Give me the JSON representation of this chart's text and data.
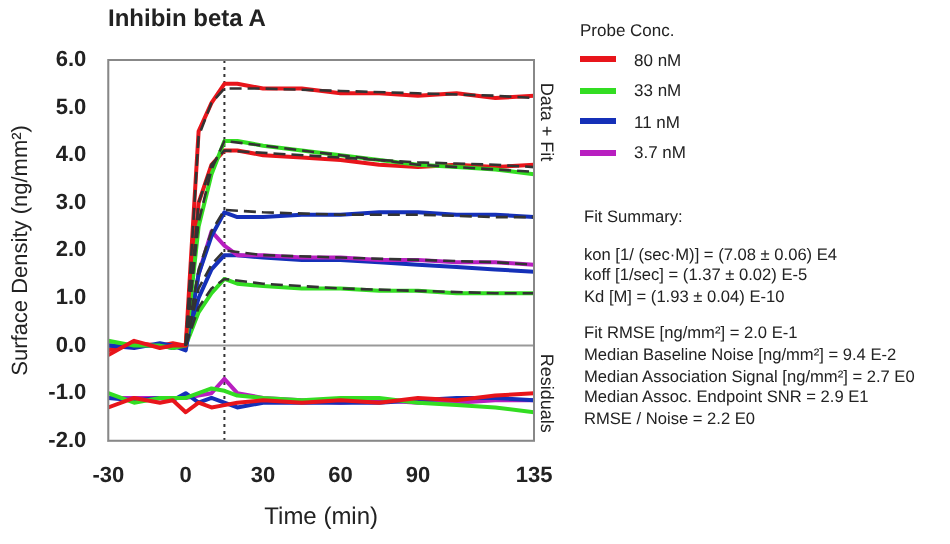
{
  "chart_data": {
    "type": "line",
    "title": "Inhibin beta A",
    "xlabel": "Time (min)",
    "ylabel": "Surface Density (ng/mm²)",
    "legend_title": "Probe Conc.",
    "legend": "right",
    "grid": false,
    "xlim": [
      -30,
      135
    ],
    "xticks": [
      -30,
      0,
      30,
      60,
      90,
      135
    ],
    "ylim": [
      -2,
      6
    ],
    "yticks": [
      {
        "value": -2,
        "label": "-2.0"
      },
      {
        "value": -1,
        "label": "-1.0"
      },
      {
        "value": 0,
        "label": "0.0"
      },
      {
        "value": 1,
        "label": "1.0"
      },
      {
        "value": 2,
        "label": "2.0"
      },
      {
        "value": 3,
        "label": "3.0"
      },
      {
        "value": 4,
        "label": "4.0"
      },
      {
        "value": 5,
        "label": "5.0"
      },
      {
        "value": 6,
        "label": "6.0"
      }
    ],
    "ref_lines": [
      {
        "axis": "x",
        "value": 15,
        "label": null,
        "color": "#333333",
        "line_style": "dotted"
      },
      {
        "axis": "y",
        "value": 0,
        "label": null,
        "color": "#999999",
        "line_style": "solid"
      }
    ],
    "annotations": [
      "Data + Fit",
      "Residuals",
      "Fit Summary:",
      "kon [1/ (sec·M)] = (7.08 ± 0.06) E4",
      "koff [1/sec] = (1.37 ± 0.02) E-5",
      "Kd [M] = (1.93 ± 0.04) E-10",
      "Fit RMSE [ng/mm²] = 2.0 E-1",
      "Median Baseline Noise [ng/mm²] = 9.4 E-2",
      "Median Association Signal [ng/mm²] = 2.7 E0",
      "Median Assoc. Endpoint SNR = 2.9 E1",
      "RMSE / Noise = 2.2 E0"
    ],
    "series": [
      {
        "name": "80 nM",
        "color": "#e8151b",
        "x": [
          -30,
          -20,
          -10,
          -5,
          0,
          5,
          10,
          15,
          20,
          30,
          45,
          60,
          75,
          90,
          105,
          120,
          135
        ],
        "values": [
          -0.2,
          0.1,
          -0.05,
          0,
          0,
          4.5,
          5.1,
          5.5,
          5.5,
          5.4,
          5.4,
          5.3,
          5.3,
          5.25,
          5.3,
          5.2,
          5.25
        ]
      },
      {
        "name": "33 nM",
        "color": "#33dd22",
        "x": [
          -30,
          -20,
          -10,
          -5,
          0,
          5,
          10,
          15,
          20,
          30,
          45,
          60,
          75,
          90,
          105,
          120,
          135
        ],
        "values": [
          0.1,
          0,
          0,
          -0.05,
          0,
          2.5,
          3.6,
          4.3,
          4.3,
          4.2,
          4.1,
          4.0,
          3.9,
          3.8,
          3.75,
          3.7,
          3.6
        ]
      },
      {
        "name": "11 nM",
        "color": "#1530b8",
        "x": [
          -30,
          -20,
          -10,
          -5,
          0,
          5,
          10,
          15,
          20,
          30,
          45,
          60,
          75,
          90,
          105,
          120,
          135
        ],
        "values": [
          0,
          -0.05,
          0.05,
          0,
          -0.1,
          1.5,
          2.3,
          2.8,
          2.7,
          2.7,
          2.75,
          2.75,
          2.8,
          2.8,
          2.75,
          2.75,
          2.7
        ]
      },
      {
        "name": "3.7 nM",
        "color": "#b81fc0",
        "x": [
          0,
          5,
          10,
          15,
          20,
          30,
          45,
          60,
          75,
          90,
          105,
          120,
          135
        ],
        "values": [
          0,
          1.5,
          2.4,
          2.1,
          1.9,
          1.9,
          1.85,
          1.85,
          1.8,
          1.8,
          1.75,
          1.75,
          1.7
        ]
      },
      {
        "color": "#e8151b",
        "x": [
          -30,
          -20,
          -10,
          -5,
          0,
          5,
          10,
          15,
          20,
          30,
          45,
          60,
          75,
          90,
          105,
          120,
          135
        ],
        "values": [
          -0.1,
          0.05,
          0,
          0.05,
          0,
          3.0,
          3.8,
          4.1,
          4.1,
          4.0,
          3.95,
          3.9,
          3.8,
          3.75,
          3.8,
          3.75,
          3.8
        ]
      },
      {
        "color": "#33dd22",
        "x": [
          -30,
          -20,
          -10,
          -5,
          0,
          5,
          10,
          15,
          20,
          30,
          45,
          60,
          75,
          90,
          105,
          120,
          135
        ],
        "values": [
          0,
          0,
          0,
          0,
          0,
          0.7,
          1.1,
          1.4,
          1.3,
          1.25,
          1.2,
          1.2,
          1.15,
          1.15,
          1.1,
          1.1,
          1.1
        ]
      },
      {
        "color": "#1530b8",
        "x": [
          -30,
          -20,
          -10,
          -5,
          0,
          5,
          10,
          15,
          20,
          30,
          45,
          60,
          75,
          90,
          105,
          120,
          135
        ],
        "values": [
          0,
          0,
          0,
          -0.05,
          0,
          1.0,
          1.6,
          1.9,
          1.9,
          1.85,
          1.8,
          1.8,
          1.75,
          1.7,
          1.65,
          1.6,
          1.55
        ]
      },
      {
        "color": "#333333",
        "line_style": "dashed",
        "x": [
          0,
          5,
          10,
          15,
          30,
          60,
          90,
          120,
          135
        ],
        "values": [
          0,
          4.4,
          5.1,
          5.4,
          5.4,
          5.35,
          5.3,
          5.25,
          5.2
        ]
      },
      {
        "color": "#333333",
        "line_style": "dashed",
        "x": [
          0,
          5,
          10,
          15,
          30,
          60,
          90,
          120,
          135
        ],
        "values": [
          0,
          3.0,
          3.8,
          4.1,
          4.05,
          3.95,
          3.85,
          3.8,
          3.75
        ]
      },
      {
        "color": "#333333",
        "line_style": "dashed",
        "x": [
          0,
          5,
          10,
          15,
          30,
          60,
          90,
          120,
          135
        ],
        "values": [
          0,
          2.6,
          3.7,
          4.3,
          4.2,
          4.0,
          3.8,
          3.7,
          3.65
        ]
      },
      {
        "color": "#333333",
        "line_style": "dashed",
        "x": [
          0,
          5,
          10,
          15,
          30,
          60,
          90,
          120,
          135
        ],
        "values": [
          0,
          1.6,
          2.4,
          2.85,
          2.8,
          2.75,
          2.75,
          2.7,
          2.7
        ]
      },
      {
        "color": "#333333",
        "line_style": "dashed",
        "x": [
          0,
          5,
          10,
          15,
          30,
          60,
          90,
          120,
          135
        ],
        "values": [
          0,
          1.2,
          1.7,
          2.0,
          1.9,
          1.85,
          1.8,
          1.75,
          1.7
        ]
      },
      {
        "color": "#333333",
        "line_style": "dashed",
        "x": [
          0,
          5,
          10,
          15,
          30,
          60,
          90,
          120,
          135
        ],
        "values": [
          0,
          0.8,
          1.2,
          1.4,
          1.3,
          1.2,
          1.15,
          1.1,
          1.1
        ]
      },
      {
        "color": "#e8151b",
        "x": [
          -30,
          -20,
          -10,
          -5,
          0,
          5,
          10,
          15,
          20,
          30,
          45,
          60,
          75,
          90,
          105,
          120,
          135
        ],
        "values": [
          -1.3,
          -1.1,
          -1.2,
          -1.15,
          -1.4,
          -1.2,
          -1.3,
          -1.25,
          -1.2,
          -1.15,
          -1.2,
          -1.15,
          -1.2,
          -1.1,
          -1.15,
          -1.05,
          -1.0
        ]
      },
      {
        "color": "#33dd22",
        "x": [
          -30,
          -20,
          -10,
          -5,
          0,
          5,
          10,
          15,
          20,
          30,
          45,
          60,
          75,
          90,
          105,
          120,
          135
        ],
        "values": [
          -1.0,
          -1.2,
          -1.1,
          -1.1,
          -1.1,
          -1.0,
          -0.9,
          -0.95,
          -1.05,
          -1.1,
          -1.15,
          -1.1,
          -1.1,
          -1.2,
          -1.25,
          -1.3,
          -1.4
        ]
      },
      {
        "color": "#1530b8",
        "x": [
          -30,
          -20,
          -10,
          -5,
          0,
          5,
          10,
          15,
          20,
          30,
          45,
          60,
          75,
          90,
          105,
          120,
          135
        ],
        "values": [
          -1.1,
          -1.15,
          -1.1,
          -1.15,
          -1.0,
          -1.2,
          -1.1,
          -1.2,
          -1.3,
          -1.2,
          -1.2,
          -1.2,
          -1.2,
          -1.15,
          -1.1,
          -1.1,
          -1.15
        ]
      },
      {
        "color": "#b81fc0",
        "x": [
          -30,
          -20,
          -10,
          -5,
          0,
          5,
          10,
          15,
          20,
          30,
          45,
          60,
          75,
          90,
          105,
          120,
          135
        ],
        "values": [
          -1.1,
          -1.1,
          -1.1,
          -1.1,
          -1.1,
          -1.05,
          -1.0,
          -0.7,
          -1.0,
          -1.1,
          -1.15,
          -1.2,
          -1.15,
          -1.2,
          -1.2,
          -1.15,
          -1.15
        ]
      }
    ]
  }
}
